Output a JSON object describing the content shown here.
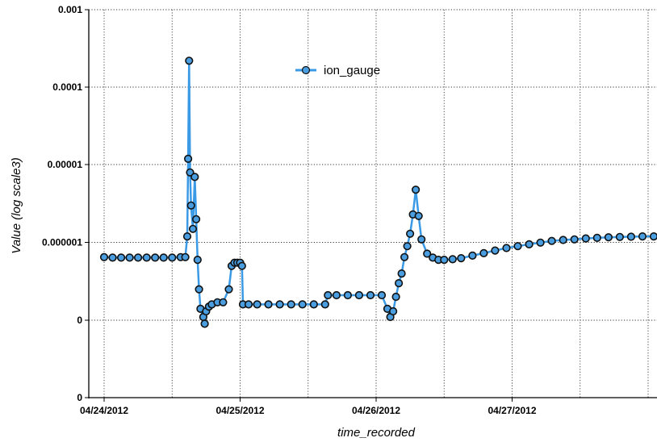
{
  "chart_data": {
    "type": "scatter",
    "title": "",
    "xlabel": "time_recorded",
    "ylabel": "Value (log scale3)",
    "x_tick_labels": [
      "04/24/2012",
      "04/25/2012",
      "04/26/2012",
      "04/27/2012"
    ],
    "y_tick_labels": [
      "0",
      "0",
      "0.000001",
      "0.00001",
      "0.0001",
      "0.001"
    ],
    "grid": true,
    "legend": "top-center",
    "colors": {
      "line": "#3a9ae6",
      "marker_fill": "#4a9ee0",
      "marker_edge": "#111111"
    },
    "series": [
      {
        "name": "ion_gauge",
        "points": [
          [
            "2012-04-24 00:00",
            6.5e-07
          ],
          [
            "2012-04-24 01:30",
            6.4e-07
          ],
          [
            "2012-04-24 03:00",
            6.4e-07
          ],
          [
            "2012-04-24 04:30",
            6.4e-07
          ],
          [
            "2012-04-24 06:00",
            6.4e-07
          ],
          [
            "2012-04-24 07:30",
            6.4e-07
          ],
          [
            "2012-04-24 09:00",
            6.4e-07
          ],
          [
            "2012-04-24 10:30",
            6.4e-07
          ],
          [
            "2012-04-24 12:00",
            6.4e-07
          ],
          [
            "2012-04-24 13:30",
            6.5e-07
          ],
          [
            "2012-04-24 14:20",
            6.5e-07
          ],
          [
            "2012-04-24 14:40",
            1.2e-06
          ],
          [
            "2012-04-24 14:50",
            1.2e-05
          ],
          [
            "2012-04-24 15:00",
            0.00022
          ],
          [
            "2012-04-24 15:10",
            8e-06
          ],
          [
            "2012-04-24 15:20",
            3e-06
          ],
          [
            "2012-04-24 15:40",
            1.5e-06
          ],
          [
            "2012-04-24 16:00",
            7e-06
          ],
          [
            "2012-04-24 16:15",
            2e-06
          ],
          [
            "2012-04-24 16:30",
            6e-07
          ],
          [
            "2012-04-24 16:45",
            2.5e-07
          ],
          [
            "2012-04-24 17:00",
            1.4e-07
          ],
          [
            "2012-04-24 17:30",
            1.1e-07
          ],
          [
            "2012-04-24 17:45",
            9e-08
          ],
          [
            "2012-04-24 18:00",
            1.3e-07
          ],
          [
            "2012-04-24 18:30",
            1.5e-07
          ],
          [
            "2012-04-24 19:00",
            1.6e-07
          ],
          [
            "2012-04-24 20:00",
            1.7e-07
          ],
          [
            "2012-04-24 21:00",
            1.7e-07
          ],
          [
            "2012-04-24 22:00",
            2.5e-07
          ],
          [
            "2012-04-24 22:30",
            5e-07
          ],
          [
            "2012-04-24 23:00",
            5.5e-07
          ],
          [
            "2012-04-24 23:30",
            5.5e-07
          ],
          [
            "2012-04-25 00:00",
            5.5e-07
          ],
          [
            "2012-04-25 00:20",
            5e-07
          ],
          [
            "2012-04-25 00:30",
            1.6e-07
          ],
          [
            "2012-04-25 01:30",
            1.6e-07
          ],
          [
            "2012-04-25 03:00",
            1.6e-07
          ],
          [
            "2012-04-25 05:00",
            1.6e-07
          ],
          [
            "2012-04-25 07:00",
            1.6e-07
          ],
          [
            "2012-04-25 09:00",
            1.6e-07
          ],
          [
            "2012-04-25 11:00",
            1.6e-07
          ],
          [
            "2012-04-25 13:00",
            1.6e-07
          ],
          [
            "2012-04-25 15:00",
            1.6e-07
          ],
          [
            "2012-04-25 15:30",
            2.1e-07
          ],
          [
            "2012-04-25 17:00",
            2.1e-07
          ],
          [
            "2012-04-25 19:00",
            2.1e-07
          ],
          [
            "2012-04-25 21:00",
            2.1e-07
          ],
          [
            "2012-04-25 23:00",
            2.1e-07
          ],
          [
            "2012-04-26 01:00",
            2.1e-07
          ],
          [
            "2012-04-26 02:00",
            1.4e-07
          ],
          [
            "2012-04-26 02:30",
            1.1e-07
          ],
          [
            "2012-04-26 03:00",
            1.3e-07
          ],
          [
            "2012-04-26 03:30",
            2e-07
          ],
          [
            "2012-04-26 04:00",
            3e-07
          ],
          [
            "2012-04-26 04:30",
            4e-07
          ],
          [
            "2012-04-26 05:00",
            6.5e-07
          ],
          [
            "2012-04-26 05:30",
            9e-07
          ],
          [
            "2012-04-26 06:00",
            1.3e-06
          ],
          [
            "2012-04-26 06:30",
            2.3e-06
          ],
          [
            "2012-04-26 07:00",
            4.8e-06
          ],
          [
            "2012-04-26 07:30",
            2.2e-06
          ],
          [
            "2012-04-26 08:00",
            1.1e-06
          ],
          [
            "2012-04-26 09:00",
            7.2e-07
          ],
          [
            "2012-04-26 10:00",
            6.4e-07
          ],
          [
            "2012-04-26 11:00",
            6e-07
          ],
          [
            "2012-04-26 12:00",
            6e-07
          ],
          [
            "2012-04-26 13:30",
            6.1e-07
          ],
          [
            "2012-04-26 15:00",
            6.3e-07
          ],
          [
            "2012-04-26 17:00",
            6.8e-07
          ],
          [
            "2012-04-26 19:00",
            7.3e-07
          ],
          [
            "2012-04-26 21:00",
            7.9e-07
          ],
          [
            "2012-04-26 23:00",
            8.5e-07
          ],
          [
            "2012-04-27 01:00",
            9e-07
          ],
          [
            "2012-04-27 03:00",
            9.5e-07
          ],
          [
            "2012-04-27 05:00",
            1e-06
          ],
          [
            "2012-04-27 07:00",
            1.05e-06
          ],
          [
            "2012-04-27 09:00",
            1.08e-06
          ],
          [
            "2012-04-27 11:00",
            1.1e-06
          ],
          [
            "2012-04-27 13:00",
            1.13e-06
          ],
          [
            "2012-04-27 15:00",
            1.15e-06
          ],
          [
            "2012-04-27 17:00",
            1.17e-06
          ],
          [
            "2012-04-27 19:00",
            1.18e-06
          ],
          [
            "2012-04-27 21:00",
            1.19e-06
          ],
          [
            "2012-04-27 23:00",
            1.2e-06
          ],
          [
            "2012-04-28 01:00",
            1.2e-06
          ],
          [
            "2012-04-28 03:00",
            1.2e-06
          ]
        ]
      }
    ]
  }
}
